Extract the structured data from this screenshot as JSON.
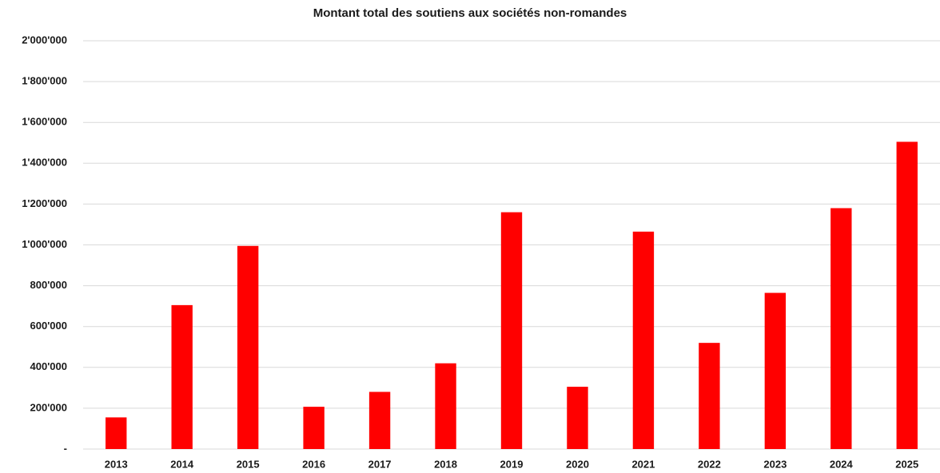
{
  "chart_data": {
    "type": "bar",
    "title": "Montant total des soutiens aux sociétés non-romandes",
    "categories": [
      "2013",
      "2014",
      "2015",
      "2016",
      "2017",
      "2018",
      "2019",
      "2020",
      "2021",
      "2022",
      "2023",
      "2024",
      "2025"
    ],
    "values": [
      155000,
      705000,
      995000,
      207000,
      280000,
      420000,
      1160000,
      305000,
      1065000,
      520000,
      765000,
      1180000,
      1505000
    ],
    "color": "#ff0000",
    "ylim": [
      0,
      2000000
    ],
    "yticks": [
      {
        "value": 0,
        "label": "-"
      },
      {
        "value": 200000,
        "label": "200'000"
      },
      {
        "value": 400000,
        "label": "400'000"
      },
      {
        "value": 600000,
        "label": "600'000"
      },
      {
        "value": 800000,
        "label": "800'000"
      },
      {
        "value": 1000000,
        "label": "1'000'000"
      },
      {
        "value": 1200000,
        "label": "1'200'000"
      },
      {
        "value": 1400000,
        "label": "1'400'000"
      },
      {
        "value": 1600000,
        "label": "1'600'000"
      },
      {
        "value": 1800000,
        "label": "1'800'000"
      },
      {
        "value": 2000000,
        "label": "2'000'000"
      }
    ],
    "grid": true
  }
}
